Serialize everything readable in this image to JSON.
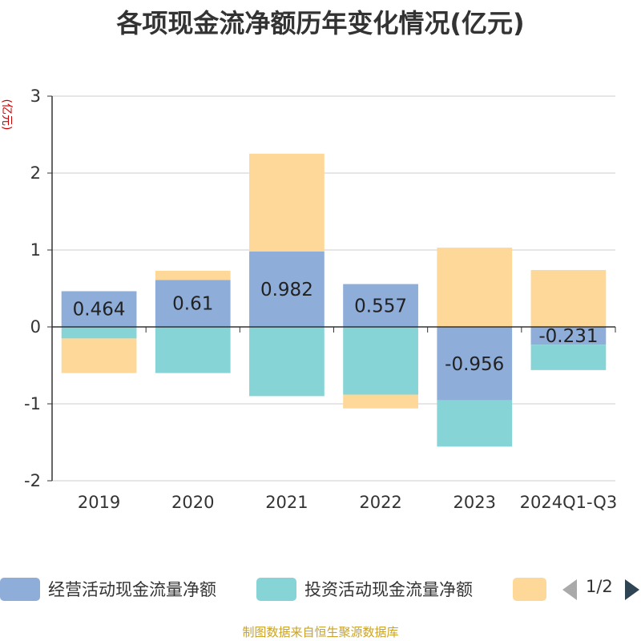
{
  "chart_data": {
    "type": "bar",
    "stacked": true,
    "title": "各项现金流净额历年变化情况(亿元)",
    "ylabel": "(亿元)",
    "ylim": [
      -2,
      3
    ],
    "yticks": [
      3,
      2,
      1,
      0,
      -1,
      -2
    ],
    "grid": true,
    "legend_position": "bottom",
    "categories": [
      "2019",
      "2020",
      "2021",
      "2022",
      "2023",
      "2024Q1-Q3"
    ],
    "series": [
      {
        "name": "经营活动现金流量净额",
        "color": "#8eadd9",
        "values": [
          0.464,
          0.61,
          0.982,
          0.557,
          -0.956,
          -0.231
        ]
      },
      {
        "name": "投资活动现金流量净额",
        "color": "#86d4d6",
        "values": [
          -0.15,
          -0.6,
          -0.9,
          -0.88,
          -0.6,
          -0.33
        ]
      },
      {
        "name": "",
        "color": "#fdd898",
        "values": [
          -0.45,
          0.12,
          1.27,
          -0.18,
          1.03,
          0.74
        ]
      }
    ],
    "data_labels": [
      "0.464",
      "0.61",
      "0.982",
      "0.557",
      "-0.956",
      "-0.231"
    ]
  },
  "legend": {
    "page_indicator": "1/2"
  },
  "footer": {
    "source": "制图数据来自恒生聚源数据库"
  }
}
